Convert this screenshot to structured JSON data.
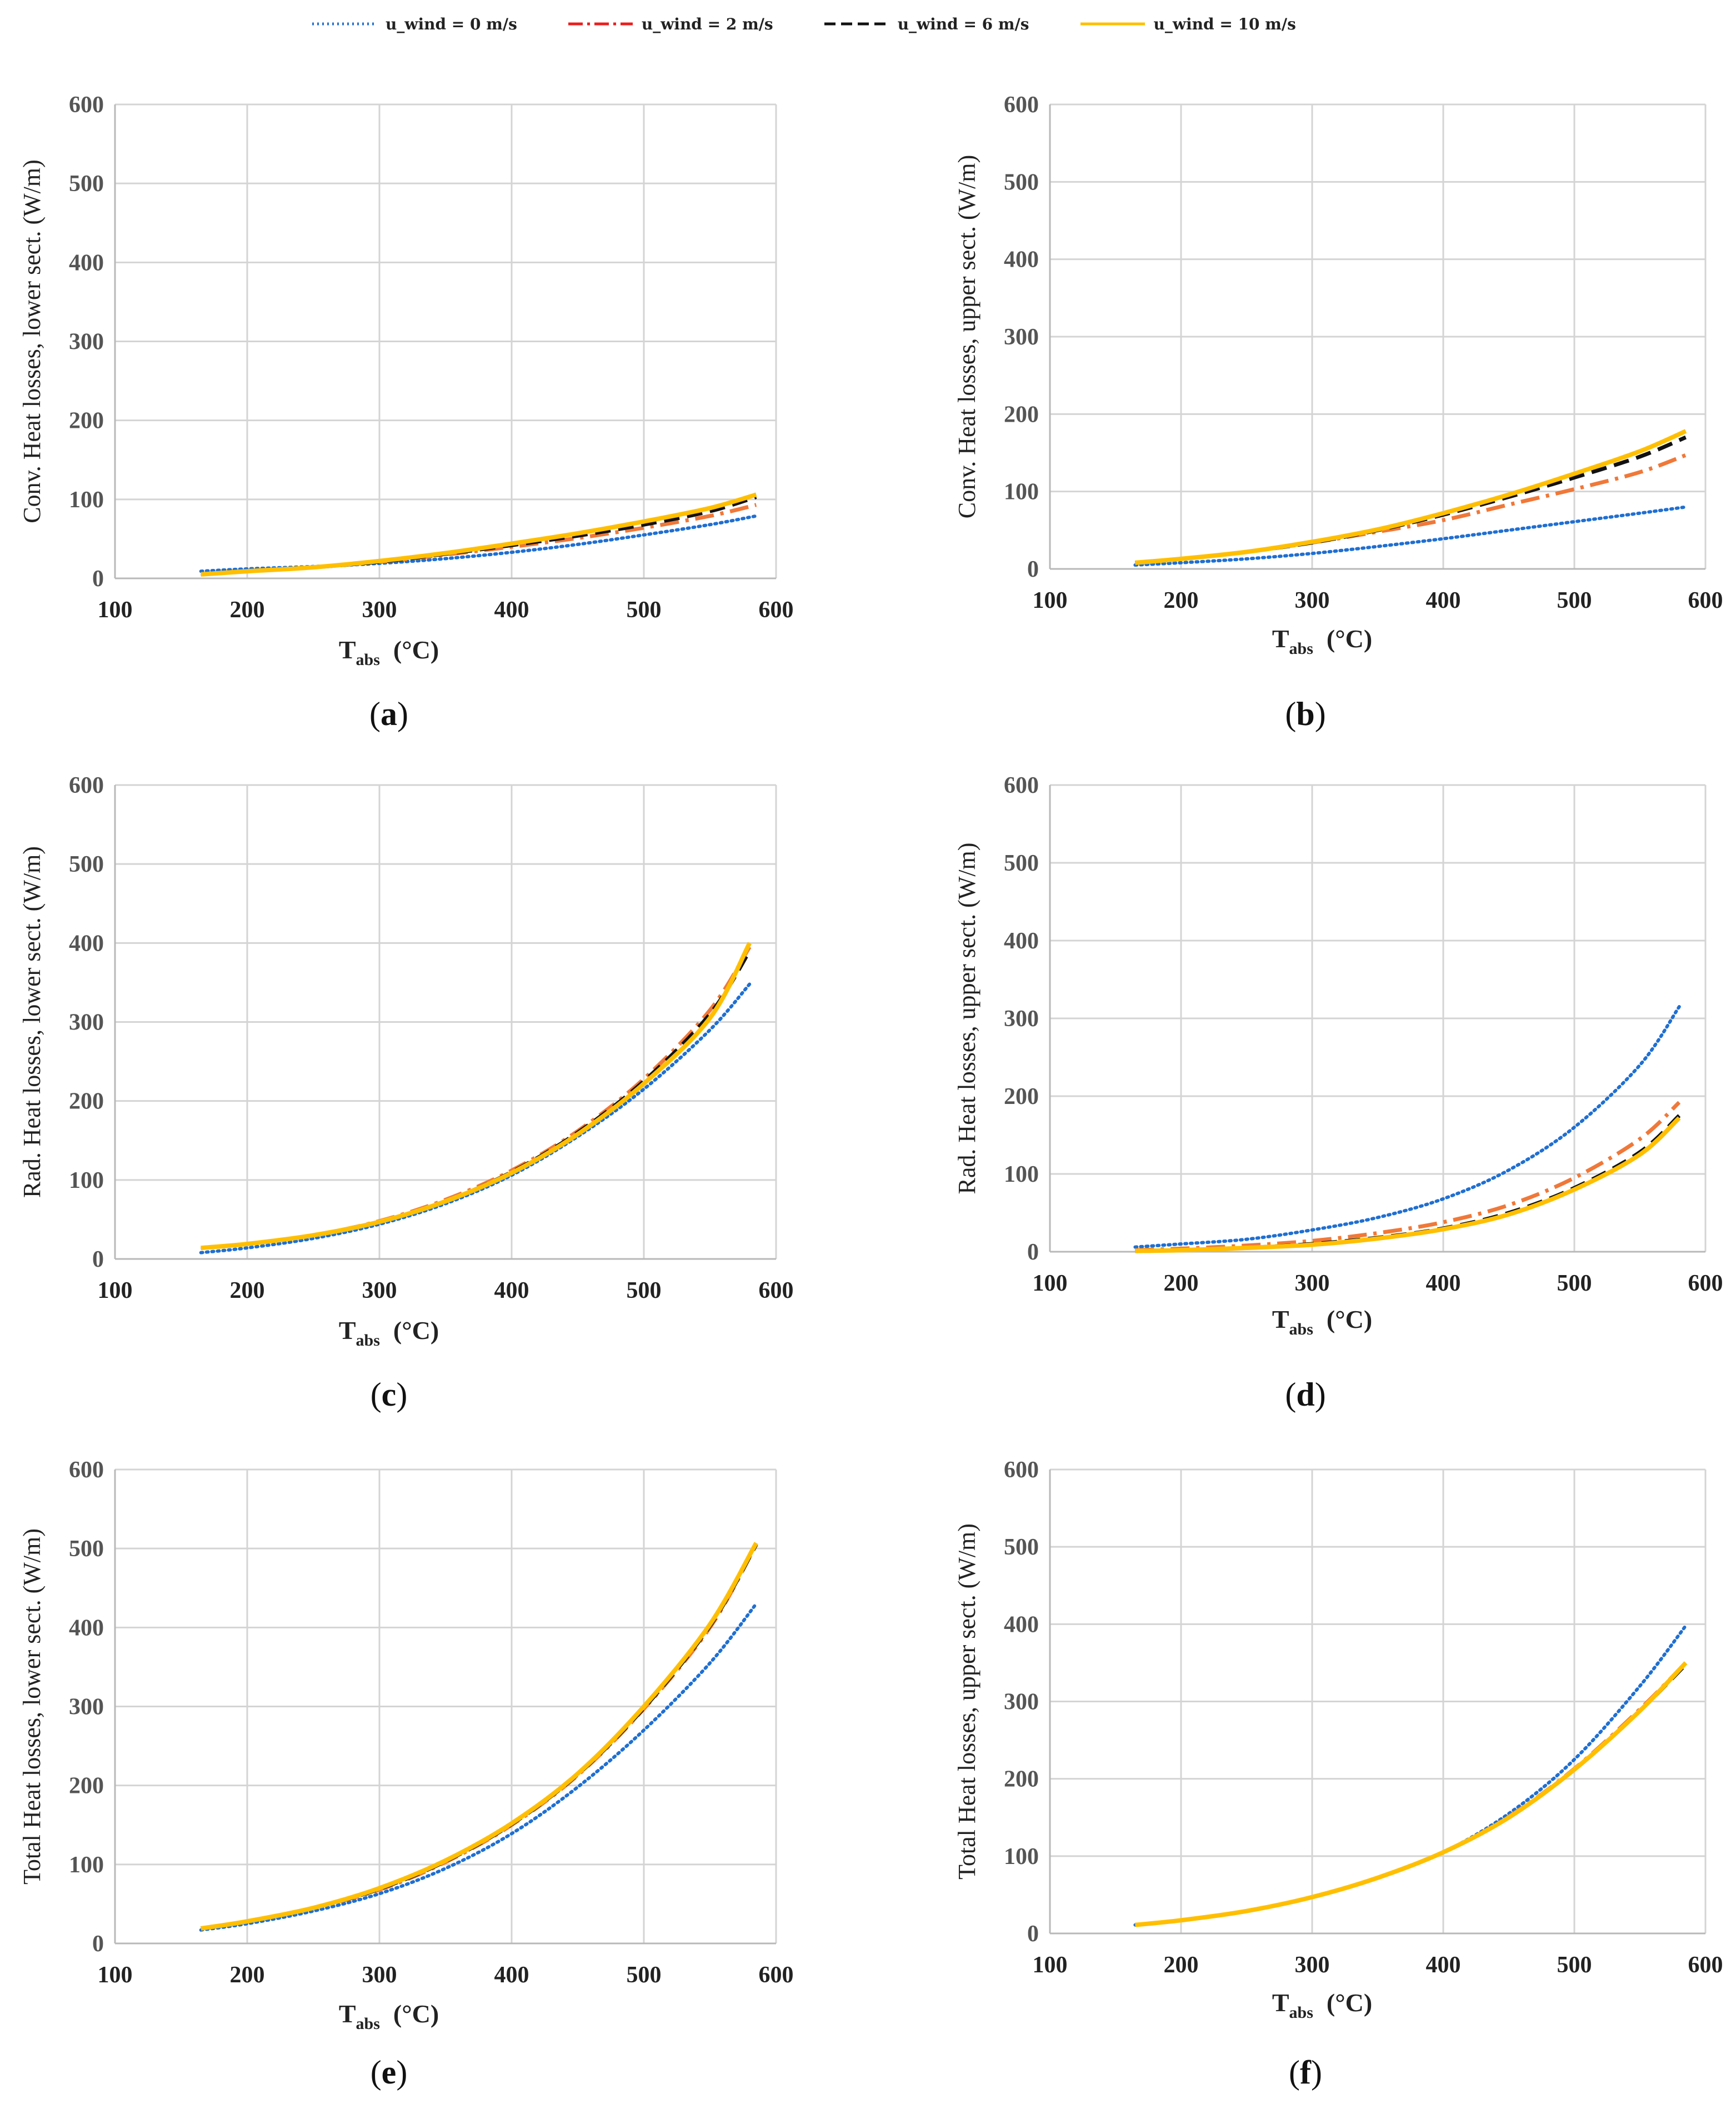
{
  "legend": [
    {
      "label": "u_wind = 0 m/s",
      "color": "#1f6fd1",
      "dash": "dotted"
    },
    {
      "label": "u_wind = 2 m/s",
      "color": "#f07838",
      "dash": "dashdot"
    },
    {
      "label": "u_wind = 6 m/s",
      "color": "#111111",
      "dash": "dashed"
    },
    {
      "label": "u_wind = 10 m/s",
      "color": "#ffbf00",
      "dash": "solid"
    }
  ],
  "legend_icon_colors": [
    "#1f6fd1",
    "#ee1c1c",
    "#111111",
    "#ffbf00"
  ],
  "xlabel": "T",
  "xlabel_sub": "abs",
  "xlabel_unit": "(°C)",
  "chart_data": [
    {
      "id": "a",
      "panel_label": "a",
      "type": "line",
      "ylabel": "Conv. Heat losses, lower sect. (W/m)",
      "xlim": [
        100,
        600
      ],
      "ylim": [
        0,
        600
      ],
      "xticks": [
        100,
        200,
        300,
        400,
        500,
        600
      ],
      "yticks": [
        0,
        100,
        200,
        300,
        400,
        500,
        600
      ],
      "x": [
        165,
        200,
        250,
        300,
        350,
        400,
        450,
        500,
        550,
        585
      ],
      "series": [
        {
          "name": "u_wind = 0 m/s",
          "values": [
            9,
            12,
            15,
            19,
            25,
            33,
            43,
            55,
            68,
            79
          ]
        },
        {
          "name": "u_wind = 2 m/s",
          "values": [
            5,
            9,
            14,
            21,
            30,
            40,
            51,
            64,
            79,
            93
          ]
        },
        {
          "name": "u_wind = 6 m/s",
          "values": [
            5,
            9,
            14,
            21,
            31,
            42,
            54,
            68,
            85,
            103
          ]
        },
        {
          "name": "u_wind = 10 m/s",
          "values": [
            5,
            9,
            14,
            22,
            32,
            44,
            57,
            72,
            89,
            106
          ]
        }
      ]
    },
    {
      "id": "b",
      "panel_label": "b",
      "type": "line",
      "ylabel": "Conv. Heat losses, upper sect. (W/m)",
      "xlim": [
        100,
        600
      ],
      "ylim": [
        0,
        600
      ],
      "xticks": [
        100,
        200,
        300,
        400,
        500,
        600
      ],
      "yticks": [
        0,
        100,
        200,
        300,
        400,
        500,
        600
      ],
      "x": [
        165,
        200,
        250,
        300,
        350,
        400,
        450,
        500,
        550,
        585
      ],
      "series": [
        {
          "name": "u_wind = 0 m/s",
          "values": [
            5,
            8,
            13,
            20,
            29,
            39,
            50,
            61,
            72,
            80
          ]
        },
        {
          "name": "u_wind = 2 m/s",
          "values": [
            8,
            13,
            22,
            34,
            48,
            63,
            83,
            103,
            125,
            147
          ]
        },
        {
          "name": "u_wind = 6 m/s",
          "values": [
            8,
            13,
            22,
            34,
            50,
            70,
            93,
            118,
            145,
            170
          ]
        },
        {
          "name": "u_wind = 10 m/s",
          "values": [
            8,
            13,
            22,
            35,
            51,
            72,
            96,
            123,
            152,
            178
          ]
        }
      ]
    },
    {
      "id": "c",
      "panel_label": "c",
      "type": "line",
      "ylabel": "Rad. Heat losses, lower sect. (W/m)",
      "xlim": [
        100,
        600
      ],
      "ylim": [
        0,
        600
      ],
      "xticks": [
        100,
        200,
        300,
        400,
        500,
        600
      ],
      "yticks": [
        0,
        100,
        200,
        300,
        400,
        500,
        600
      ],
      "x": [
        165,
        200,
        250,
        300,
        350,
        400,
        450,
        500,
        550,
        580
      ],
      "series": [
        {
          "name": "u_wind = 0 m/s",
          "values": [
            8,
            14,
            26,
            44,
            70,
            106,
            155,
            215,
            290,
            348
          ]
        },
        {
          "name": "u_wind = 2 m/s",
          "values": [
            14,
            19,
            30,
            48,
            75,
            112,
            162,
            228,
            315,
            395
          ]
        },
        {
          "name": "u_wind = 6 m/s",
          "values": [
            14,
            19,
            30,
            47,
            73,
            110,
            160,
            225,
            310,
            390
          ]
        },
        {
          "name": "u_wind = 10 m/s",
          "values": [
            14,
            19,
            30,
            47,
            73,
            109,
            158,
            222,
            305,
            400
          ]
        }
      ]
    },
    {
      "id": "d",
      "panel_label": "d",
      "type": "line",
      "ylabel": "Rad. Heat losses, upper sect. (W/m)",
      "xlim": [
        100,
        600
      ],
      "ylim": [
        0,
        600
      ],
      "xticks": [
        100,
        200,
        300,
        400,
        500,
        600
      ],
      "yticks": [
        0,
        100,
        200,
        300,
        400,
        500,
        600
      ],
      "x": [
        165,
        200,
        250,
        300,
        350,
        400,
        450,
        500,
        550,
        580
      ],
      "series": [
        {
          "name": "u_wind = 0 m/s",
          "values": [
            6,
            10,
            16,
            28,
            44,
            68,
            105,
            160,
            240,
            315
          ]
        },
        {
          "name": "u_wind = 2 m/s",
          "values": [
            2,
            4,
            8,
            14,
            24,
            38,
            60,
            95,
            145,
            192
          ]
        },
        {
          "name": "u_wind = 6 m/s",
          "values": [
            1,
            2,
            5,
            10,
            18,
            30,
            50,
            82,
            128,
            175
          ]
        },
        {
          "name": "u_wind = 10 m/s",
          "values": [
            1,
            2,
            5,
            9,
            17,
            29,
            48,
            80,
            125,
            172
          ]
        }
      ]
    },
    {
      "id": "e",
      "panel_label": "e",
      "type": "line",
      "ylabel": "Total Heat losses, lower sect. (W/m)",
      "xlim": [
        100,
        600
      ],
      "ylim": [
        0,
        600
      ],
      "xticks": [
        100,
        200,
        300,
        400,
        500,
        600
      ],
      "yticks": [
        0,
        100,
        200,
        300,
        400,
        500,
        600
      ],
      "x": [
        165,
        200,
        250,
        300,
        350,
        400,
        450,
        500,
        550,
        585
      ],
      "series": [
        {
          "name": "u_wind = 0 m/s",
          "values": [
            17,
            25,
            41,
            63,
            95,
            139,
            198,
            270,
            355,
            430
          ]
        },
        {
          "name": "u_wind = 2 m/s",
          "values": [
            19,
            28,
            45,
            68,
            103,
            150,
            213,
            297,
            400,
            505
          ]
        },
        {
          "name": "u_wind = 6 m/s",
          "values": [
            19,
            28,
            45,
            69,
            104,
            151,
            214,
            298,
            402,
            505
          ]
        },
        {
          "name": "u_wind = 10 m/s",
          "values": [
            19,
            28,
            45,
            70,
            105,
            152,
            215,
            300,
            404,
            507
          ]
        }
      ]
    },
    {
      "id": "f",
      "panel_label": "f",
      "type": "line",
      "ylabel": "Total Heat losses, upper sect. (W/m)",
      "xlim": [
        100,
        600
      ],
      "ylim": [
        0,
        600
      ],
      "xticks": [
        100,
        200,
        300,
        400,
        500,
        600
      ],
      "yticks": [
        0,
        100,
        200,
        300,
        400,
        500,
        600
      ],
      "x": [
        165,
        200,
        250,
        300,
        350,
        400,
        450,
        500,
        550,
        585
      ],
      "series": [
        {
          "name": "u_wind = 0 m/s",
          "values": [
            11,
            17,
            29,
            47,
            72,
            105,
            155,
            225,
            320,
            398
          ]
        },
        {
          "name": "u_wind = 2 m/s",
          "values": [
            11,
            17,
            29,
            47,
            72,
            105,
            151,
            213,
            290,
            350
          ]
        },
        {
          "name": "u_wind = 6 m/s",
          "values": [
            11,
            17,
            29,
            47,
            72,
            105,
            150,
            212,
            288,
            348
          ]
        },
        {
          "name": "u_wind = 10 m/s",
          "values": [
            11,
            17,
            29,
            47,
            72,
            105,
            150,
            212,
            288,
            350
          ]
        }
      ]
    }
  ]
}
